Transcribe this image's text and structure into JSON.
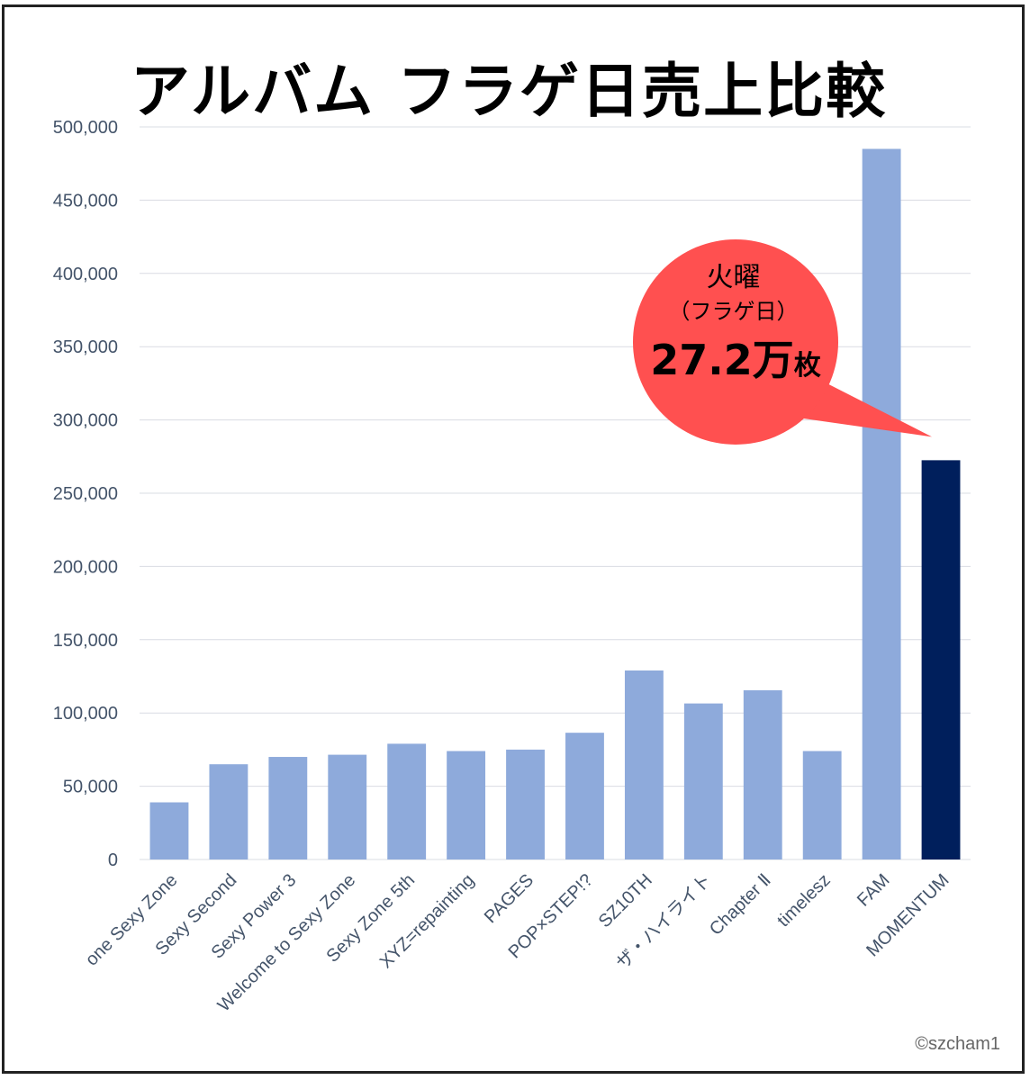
{
  "chart_data": {
    "type": "bar",
    "title": "アルバム フラゲ日売上比較",
    "xlabel": "",
    "ylabel": "",
    "ylim": [
      0,
      500000
    ],
    "yticks": [
      0,
      50000,
      100000,
      150000,
      200000,
      250000,
      300000,
      350000,
      400000,
      450000,
      500000
    ],
    "ytick_labels": [
      "0",
      "50,000",
      "100,000",
      "150,000",
      "200,000",
      "250,000",
      "300,000",
      "350,000",
      "400,000",
      "450,000",
      "500,000"
    ],
    "grid": true,
    "categories": [
      "one Sexy Zone",
      "Sexy Second",
      "Sexy Power 3",
      "Welcome to Sexy Zone",
      "Sexy Zone 5th",
      "XYZ=repainting",
      "PAGES",
      "POP×STEP!?",
      "SZ10TH",
      "ザ・ハイライト",
      "Chapter Ⅱ",
      "timelesz",
      "FAM",
      "MOMENTUM"
    ],
    "values": [
      39000,
      65000,
      70000,
      71500,
      79000,
      74000,
      75000,
      86500,
      129000,
      106500,
      115500,
      74000,
      485000,
      272500
    ],
    "colors": [
      "#8eaadb",
      "#8eaadb",
      "#8eaadb",
      "#8eaadb",
      "#8eaadb",
      "#8eaadb",
      "#8eaadb",
      "#8eaadb",
      "#8eaadb",
      "#8eaadb",
      "#8eaadb",
      "#8eaadb",
      "#8eaadb",
      "#001f5c"
    ],
    "annotation": {
      "target": "MOMENTUM",
      "line1": "火曜",
      "line2": "（フラゲ日）",
      "value_number": "27.2万",
      "value_unit": "枚",
      "bubble_color": "#ff5050"
    }
  },
  "copyright": "©szcham1"
}
